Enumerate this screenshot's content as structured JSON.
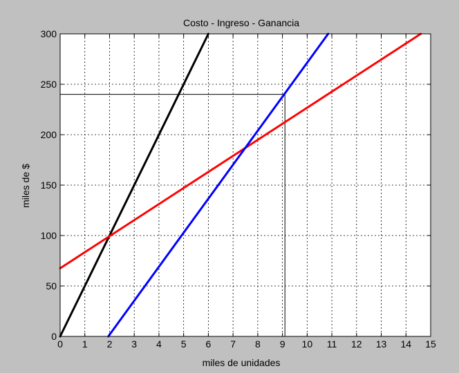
{
  "colors": {
    "figure_background": "#c0c0c0",
    "axes_background": "#ffffff",
    "grid": "#000000",
    "reference_lines": "#000000"
  },
  "chart_data": {
    "type": "line",
    "title": "Costo - Ingreso - Ganancia",
    "xlabel": "miles de unidades",
    "ylabel": "miles de $",
    "xlim": [
      0,
      15
    ],
    "ylim": [
      0,
      300
    ],
    "xticks": [
      "0",
      "1",
      "2",
      "3",
      "4",
      "5",
      "6",
      "7",
      "8",
      "9",
      "10",
      "11",
      "12",
      "13",
      "14",
      "15"
    ],
    "yticks": [
      "0",
      "50",
      "100",
      "150",
      "200",
      "250",
      "300"
    ],
    "grid": true,
    "grid_style": "dashed",
    "series": [
      {
        "color": "#000000",
        "x": [
          0,
          6.0
        ],
        "y": [
          0,
          300
        ]
      },
      {
        "color": "#ff0000",
        "x": [
          0,
          14.6
        ],
        "y": [
          67.5,
          300
        ]
      },
      {
        "color": "#0000ff",
        "x": [
          1.95,
          10.85
        ],
        "y": [
          0,
          300
        ]
      }
    ],
    "reference_lines": [
      {
        "orientation": "horizontal",
        "y": 240,
        "x_from": 0,
        "x_to": 9.1
      },
      {
        "orientation": "vertical",
        "x": 9.1,
        "y_from": 0,
        "y_to": 240
      }
    ]
  }
}
